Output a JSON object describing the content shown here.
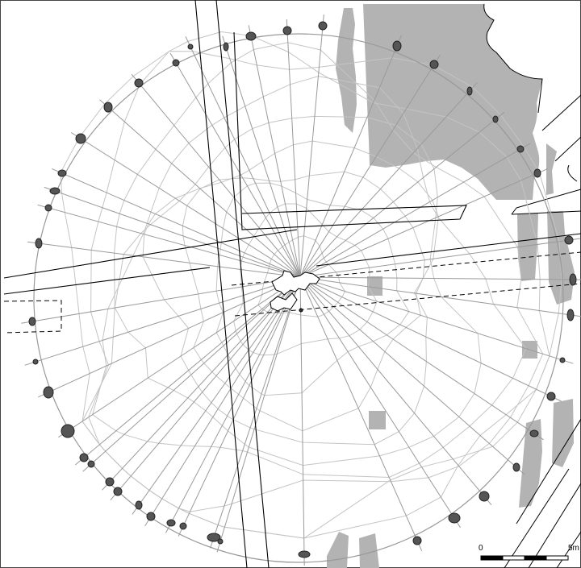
{
  "scale_bar": {
    "start_label": "0",
    "end_label": "5m",
    "segments": 4
  },
  "colors": {
    "background": "#ffffff",
    "feature_fill": "#b3b3b3",
    "post_fill": "#555555",
    "ring_stroke": "#999999",
    "spoke_stroke": "#9a9a9a",
    "contour_stroke": "#c4c4c4",
    "line_stroke": "#000000"
  }
}
